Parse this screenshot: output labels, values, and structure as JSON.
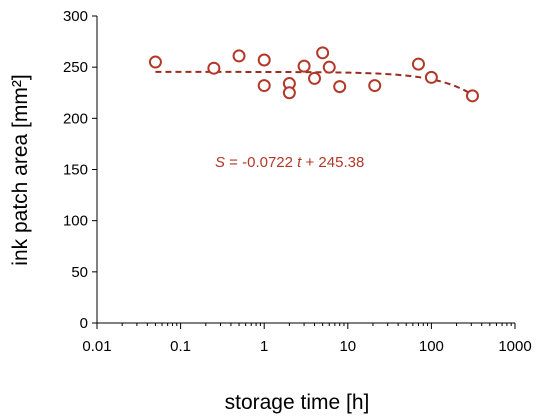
{
  "chart_data": {
    "type": "scatter",
    "title": "",
    "xlabel": "storage time [h]",
    "ylabel": "ink patch area [mm²]",
    "xscale": "log",
    "xlim": [
      0.01,
      1000
    ],
    "ylim": [
      0,
      300
    ],
    "x_ticks": [
      0.01,
      0.1,
      1,
      10,
      100,
      1000
    ],
    "x_tick_labels": [
      "0.01",
      "0.1",
      "1",
      "10",
      "100",
      "1000"
    ],
    "y_ticks": [
      0,
      50,
      100,
      150,
      200,
      250,
      300
    ],
    "y_tick_labels": [
      "0",
      "50",
      "100",
      "150",
      "200",
      "250",
      "300"
    ],
    "grid": false,
    "series": [
      {
        "type": "scatter",
        "color": "#b2382a",
        "marker": "open-circle",
        "x": [
          0.05,
          0.25,
          0.5,
          1,
          1,
          2,
          2,
          3,
          4,
          5,
          6,
          8,
          21,
          70,
          100,
          310
        ],
        "y": [
          255,
          249,
          261,
          257,
          232,
          234,
          225,
          251,
          239,
          264,
          250,
          231,
          232,
          253,
          240,
          222
        ]
      },
      {
        "type": "line",
        "style": "dashed",
        "color": "#9b2d1f",
        "equation": "S = -0.0722 t + 245.38",
        "slope": -0.0722,
        "intercept": 245.38
      }
    ],
    "annotation": {
      "italic_var": "S",
      "text_mid": " = -0.0722 ",
      "italic_t": "t",
      "text_end": " + 245.38"
    }
  }
}
